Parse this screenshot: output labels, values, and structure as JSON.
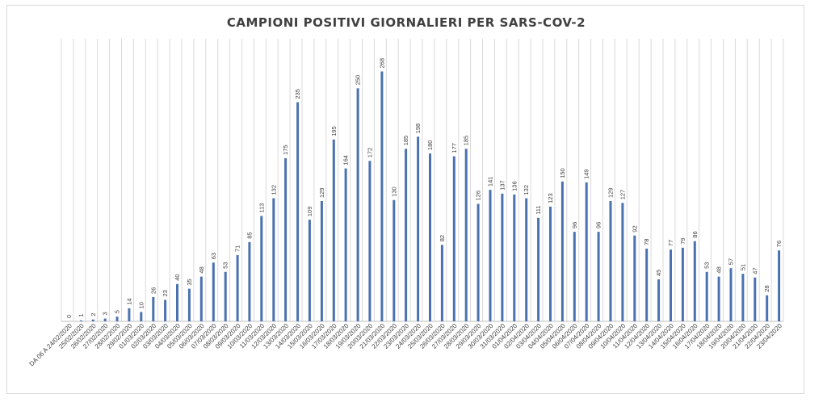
{
  "chart_data": {
    "type": "bar",
    "title": "CAMPIONI POSITIVI GIORNALIERI PER SARS-COV-2",
    "xlabel": "",
    "ylabel": "",
    "ylim": [
      0,
      280
    ],
    "grid": "vertical",
    "data_labels": true,
    "colors": {
      "bar": "#4a72b0",
      "grid": "#d9d9d9",
      "title": "#404040"
    },
    "categories": [
      "DA 06 A 24/02/2020",
      "25/02/2020",
      "26/02/2020",
      "27/02/2020",
      "28/02/2020",
      "29/02/2020",
      "01/03/2020",
      "02/03/2020",
      "03/03/2020",
      "04/03/2020",
      "05/03/2020",
      "06/03/2020",
      "07/03/2020",
      "08/03/2020",
      "09/03/2020",
      "10/03/2020",
      "11/03/2020",
      "12/03/2020",
      "13/03/2020",
      "14/03/2020",
      "15/03/2020",
      "16/03/2020",
      "17/03/2020",
      "18/03/2020",
      "19/03/2020",
      "20/03/2020",
      "21/03/2020",
      "22/03/2020",
      "23/03/2020",
      "24/03/2020",
      "25/03/2020",
      "26/03/2020",
      "27/03/2020",
      "28/03/2020",
      "29/03/2020",
      "30/03/2020",
      "31/03/2020",
      "01/04/2020",
      "02/04/2020",
      "03/04/2020",
      "04/04/2020",
      "05/04/2020",
      "06/04/2020",
      "07/04/2020",
      "08/04/2020",
      "09/04/2020",
      "10/04/2020",
      "11/04/2020",
      "12/04/2020",
      "13/04/2020",
      "14/04/2020",
      "15/04/2020",
      "16/04/2020",
      "17/04/2020",
      "18/04/2020",
      "19/04/2020",
      "20/04/2020",
      "21/04/2020",
      "22/04/2020",
      "23/04/2020"
    ],
    "values": [
      0,
      1,
      2,
      3,
      5,
      14,
      10,
      26,
      23,
      40,
      35,
      48,
      63,
      53,
      71,
      85,
      113,
      132,
      175,
      235,
      109,
      129,
      195,
      164,
      250,
      172,
      268,
      130,
      185,
      198,
      180,
      82,
      177,
      185,
      126,
      141,
      137,
      136,
      132,
      111,
      123,
      150,
      96,
      149,
      96,
      129,
      127,
      92,
      78,
      45,
      77,
      79,
      86,
      53,
      48,
      57,
      51,
      47,
      28,
      76
    ]
  }
}
